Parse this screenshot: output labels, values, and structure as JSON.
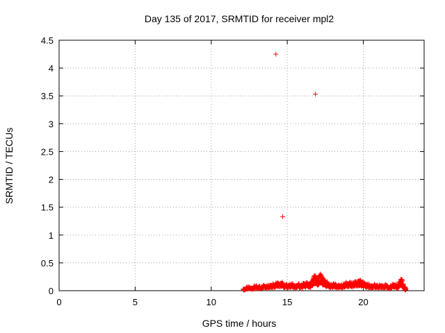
{
  "chart_data": {
    "type": "scatter",
    "title": "Day 135 of 2017, SRMTID for receiver mpl2",
    "xlabel": "GPS time / hours",
    "ylabel": "SRMTID / TECUs",
    "xlim": [
      0,
      24
    ],
    "ylim": [
      0,
      4.5
    ],
    "xticks": [
      0,
      5,
      10,
      15,
      20
    ],
    "yticks": [
      0,
      0.5,
      1,
      1.5,
      2,
      2.5,
      3,
      3.5,
      4,
      4.5
    ],
    "ytick_labels": [
      "0",
      "0.5",
      "1",
      "1.5",
      "2",
      "2.5",
      "3",
      "3.5",
      "4",
      "4.5"
    ],
    "grid": true,
    "marker": "+",
    "color": "#ff0000",
    "outliers": [
      {
        "x": 14.25,
        "y": 4.25
      },
      {
        "x": 16.85,
        "y": 3.53
      },
      {
        "x": 14.7,
        "y": 1.33
      }
    ],
    "series": [
      {
        "x": [
          12.1,
          12.3,
          12.5,
          12.7,
          12.9,
          13.1,
          13.3,
          13.5,
          13.7,
          13.9,
          14.1,
          14.3,
          14.5,
          14.7,
          14.9,
          15.1,
          15.3,
          15.5,
          15.7,
          15.9,
          16.1,
          16.3,
          16.5,
          16.6,
          16.7,
          16.8,
          16.9,
          17.0,
          17.1,
          17.2,
          17.3,
          17.4,
          17.5,
          17.7,
          17.9,
          18.1,
          18.3,
          18.5,
          18.7,
          18.9,
          19.1,
          19.3,
          19.5,
          19.7,
          19.8,
          19.9,
          20.1,
          20.3,
          20.5,
          20.7,
          20.9,
          21.1,
          21.3,
          21.5,
          21.7,
          21.9,
          22.1,
          22.3,
          22.4,
          22.5,
          22.6,
          22.7,
          22.8
        ],
        "y": [
          0.03,
          0.05,
          0.06,
          0.04,
          0.07,
          0.06,
          0.05,
          0.08,
          0.07,
          0.09,
          0.1,
          0.12,
          0.11,
          0.13,
          0.09,
          0.1,
          0.11,
          0.08,
          0.1,
          0.09,
          0.11,
          0.12,
          0.1,
          0.15,
          0.2,
          0.26,
          0.22,
          0.18,
          0.24,
          0.28,
          0.21,
          0.19,
          0.15,
          0.12,
          0.1,
          0.11,
          0.08,
          0.07,
          0.1,
          0.13,
          0.14,
          0.12,
          0.15,
          0.17,
          0.19,
          0.14,
          0.11,
          0.1,
          0.08,
          0.09,
          0.07,
          0.09,
          0.08,
          0.1,
          0.06,
          0.09,
          0.1,
          0.08,
          0.15,
          0.2,
          0.12,
          0.05,
          0.03
        ]
      }
    ]
  }
}
